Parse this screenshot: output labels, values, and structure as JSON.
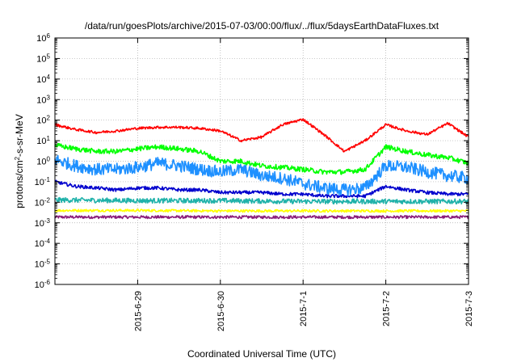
{
  "chart_data": {
    "type": "line",
    "title": "/data/run/goesPlots/archive/2015-07-03/00:00/flux/../flux/5daysEarthDataFluxes.txt",
    "xlabel": "Coordinated Universal Time (UTC)",
    "ylabel": "protons/cm²-s-sr-MeV",
    "ylabel_base": "protons/cm",
    "ylabel_sup": "2",
    "ylabel_rest": "-s-sr-MeV",
    "yscale": "log",
    "ylim": [
      1e-06,
      1000000.0
    ],
    "xlim": [
      "2015-06-28T00:00",
      "2015-07-03T00:00"
    ],
    "grid": true,
    "x_ticks": [
      "2015-6-29",
      "2015-6-30",
      "2015-7-1",
      "2015-7-2",
      "2015-7-3"
    ],
    "y_ticks": [
      {
        "base": "10",
        "exp": "6"
      },
      {
        "base": "10",
        "exp": "5"
      },
      {
        "base": "10",
        "exp": "4"
      },
      {
        "base": "10",
        "exp": "3"
      },
      {
        "base": "10",
        "exp": "2"
      },
      {
        "base": "10",
        "exp": "1"
      },
      {
        "base": "10",
        "exp": "0"
      },
      {
        "base": "10",
        "exp": "-1"
      },
      {
        "base": "10",
        "exp": "-2"
      },
      {
        "base": "10",
        "exp": "-3"
      },
      {
        "base": "10",
        "exp": "-4"
      },
      {
        "base": "10",
        "exp": "-5"
      },
      {
        "base": "10",
        "exp": "-6"
      }
    ],
    "series": [
      {
        "color": "#ff0000",
        "noise": 0.06,
        "x": [
          "2015-06-28T00:00",
          "2015-06-28T06:00",
          "2015-06-28T12:00",
          "2015-06-28T18:00",
          "2015-06-29T00:00",
          "2015-06-29T06:00",
          "2015-06-29T12:00",
          "2015-06-29T18:00",
          "2015-06-30T00:00",
          "2015-06-30T06:00",
          "2015-06-30T12:00",
          "2015-06-30T18:00",
          "2015-07-01T00:00",
          "2015-07-01T06:00",
          "2015-07-01T12:00",
          "2015-07-01T18:00",
          "2015-07-02T00:00",
          "2015-07-02T06:00",
          "2015-07-02T12:00",
          "2015-07-02T18:00",
          "2015-07-03T00:00"
        ],
        "y": [
          60,
          35,
          25,
          30,
          40,
          45,
          45,
          40,
          30,
          10,
          15,
          60,
          110,
          20,
          3,
          10,
          60,
          30,
          20,
          70,
          15
        ]
      },
      {
        "color": "#00ff00",
        "noise": 0.12,
        "x": [
          "2015-06-28T00:00",
          "2015-06-28T06:00",
          "2015-06-28T12:00",
          "2015-06-28T18:00",
          "2015-06-29T00:00",
          "2015-06-29T06:00",
          "2015-06-29T12:00",
          "2015-06-29T18:00",
          "2015-06-30T00:00",
          "2015-06-30T06:00",
          "2015-06-30T12:00",
          "2015-06-30T18:00",
          "2015-07-01T00:00",
          "2015-07-01T06:00",
          "2015-07-01T12:00",
          "2015-07-01T18:00",
          "2015-07-02T00:00",
          "2015-07-02T06:00",
          "2015-07-02T12:00",
          "2015-07-02T18:00",
          "2015-07-03T00:00"
        ],
        "y": [
          6,
          4,
          3,
          3,
          4,
          5,
          4,
          3,
          1,
          1,
          0.6,
          0.5,
          0.4,
          0.3,
          0.3,
          0.4,
          5,
          3,
          2,
          1.5,
          0.8
        ]
      },
      {
        "color": "#1e90ff",
        "noise": 0.3,
        "x": [
          "2015-06-28T00:00",
          "2015-06-28T06:00",
          "2015-06-28T12:00",
          "2015-06-28T18:00",
          "2015-06-29T00:00",
          "2015-06-29T06:00",
          "2015-06-29T12:00",
          "2015-06-29T18:00",
          "2015-06-30T00:00",
          "2015-06-30T06:00",
          "2015-06-30T12:00",
          "2015-06-30T18:00",
          "2015-07-01T00:00",
          "2015-07-01T06:00",
          "2015-07-01T12:00",
          "2015-07-01T18:00",
          "2015-07-02T00:00",
          "2015-07-02T06:00",
          "2015-07-02T12:00",
          "2015-07-02T18:00",
          "2015-07-03T00:00"
        ],
        "y": [
          1.2,
          0.6,
          0.4,
          0.4,
          0.5,
          0.8,
          0.6,
          0.4,
          0.3,
          0.4,
          0.2,
          0.15,
          0.08,
          0.05,
          0.04,
          0.05,
          0.6,
          0.5,
          0.3,
          0.2,
          0.15
        ]
      },
      {
        "color": "#0000cd",
        "noise": 0.08,
        "x": [
          "2015-06-28T00:00",
          "2015-06-28T06:00",
          "2015-06-28T12:00",
          "2015-06-28T18:00",
          "2015-06-29T00:00",
          "2015-06-29T06:00",
          "2015-06-29T12:00",
          "2015-06-29T18:00",
          "2015-06-30T00:00",
          "2015-06-30T06:00",
          "2015-06-30T12:00",
          "2015-06-30T18:00",
          "2015-07-01T00:00",
          "2015-07-01T06:00",
          "2015-07-01T12:00",
          "2015-07-01T18:00",
          "2015-07-02T00:00",
          "2015-07-02T06:00",
          "2015-07-02T12:00",
          "2015-07-02T18:00",
          "2015-07-03T00:00"
        ],
        "y": [
          0.1,
          0.06,
          0.05,
          0.04,
          0.05,
          0.05,
          0.04,
          0.04,
          0.03,
          0.03,
          0.03,
          0.025,
          0.025,
          0.02,
          0.02,
          0.02,
          0.06,
          0.04,
          0.03,
          0.025,
          0.025
        ]
      },
      {
        "color": "#20b2aa",
        "noise": 0.12,
        "x": [
          "2015-06-28T00:00",
          "2015-06-29T00:00",
          "2015-06-30T00:00",
          "2015-07-01T00:00",
          "2015-07-02T00:00",
          "2015-07-03T00:00"
        ],
        "y": [
          0.013,
          0.012,
          0.012,
          0.011,
          0.011,
          0.011
        ]
      },
      {
        "color": "#ffff00",
        "noise": 0.06,
        "x": [
          "2015-06-28T00:00",
          "2015-06-29T00:00",
          "2015-06-30T00:00",
          "2015-07-01T00:00",
          "2015-07-02T00:00",
          "2015-07-03T00:00"
        ],
        "y": [
          0.004,
          0.004,
          0.0038,
          0.0038,
          0.0038,
          0.0038
        ]
      },
      {
        "color": "#8b1c7a",
        "noise": 0.07,
        "x": [
          "2015-06-28T00:00",
          "2015-06-29T00:00",
          "2015-06-30T00:00",
          "2015-07-01T00:00",
          "2015-07-02T00:00",
          "2015-07-03T00:00"
        ],
        "y": [
          0.0019,
          0.0019,
          0.0019,
          0.0019,
          0.0019,
          0.0019
        ]
      }
    ]
  }
}
